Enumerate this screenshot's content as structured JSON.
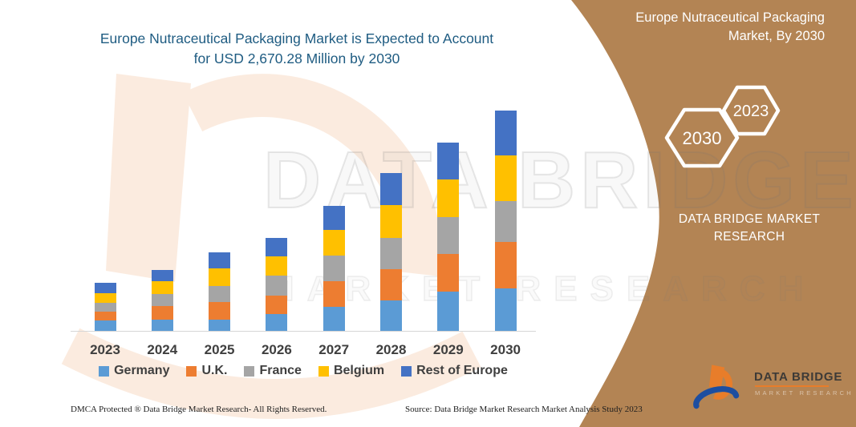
{
  "title": {
    "line1": "Europe Nutraceutical Packaging Market is Expected to Account",
    "line2": "for USD 2,670.28 Million by 2030"
  },
  "side_panel": {
    "title_line1": "Europe Nutraceutical Packaging",
    "title_line2": "Market, By 2030",
    "hexagon_front": "2030",
    "hexagon_back": "2023",
    "brand_caption": "DATA BRIDGE MARKET RESEARCH",
    "panel_color": "#b38454"
  },
  "watermark": {
    "line1": "DATA BRIDGE",
    "line2": "MARKET RESEARCH"
  },
  "logo": {
    "wordmark": "DATA BRIDGE",
    "subtitle": "MARKET RESEARCH",
    "orange": "#e87d2a",
    "blue": "#1d4ea0"
  },
  "footer": {
    "dmca": "DMCA Protected ® Data Bridge Market Research-  All Rights Reserved.",
    "source": "Source: Data Bridge Market Research  Market Analysis Study 2023"
  },
  "chart_data": {
    "type": "bar",
    "stacked": true,
    "unit": "USD Million",
    "title": "Europe Nutraceutical Packaging Market is Expected to Account for USD 2,670.28 Million by 2030",
    "categories": [
      "2023",
      "2024",
      "2025",
      "2026",
      "2027",
      "2028",
      "2029",
      "2030"
    ],
    "series": [
      {
        "name": "Germany",
        "color": "#5B9BD5",
        "values": [
          123,
          133,
          139,
          204,
          291,
          366,
          479,
          512
        ]
      },
      {
        "name": "U.K.",
        "color": "#ED7D31",
        "values": [
          110,
          168,
          211,
          226,
          314,
          379,
          453,
          566
        ]
      },
      {
        "name": "France",
        "color": "#A5A5A5",
        "values": [
          107,
          146,
          194,
          243,
          311,
          382,
          447,
          498
        ]
      },
      {
        "name": "Belgium",
        "color": "#FFC000",
        "values": [
          114,
          155,
          211,
          226,
          304,
          395,
          459,
          553
        ]
      },
      {
        "name": "Rest of Europe",
        "color": "#4472C4",
        "values": [
          129,
          136,
          194,
          226,
          291,
          388,
          447,
          541.28
        ]
      }
    ],
    "totals": [
      583,
      738,
      949,
      1125,
      1511,
      1910,
      2285,
      2670.28
    ],
    "highlight_value_2030": "USD 2,670.28 Million",
    "ylim": [
      0,
      2800
    ],
    "y_axis_visible": false,
    "gridlines": false,
    "legend_position": "bottom",
    "note": "segment values estimated from bar pixel heights; 2030 total labeled in title"
  },
  "colors": {
    "title_text": "#1f5c82",
    "axis_text": "#3f3f3f",
    "panel_tan": "#b38454",
    "axis_line": "#d6d6d6"
  }
}
